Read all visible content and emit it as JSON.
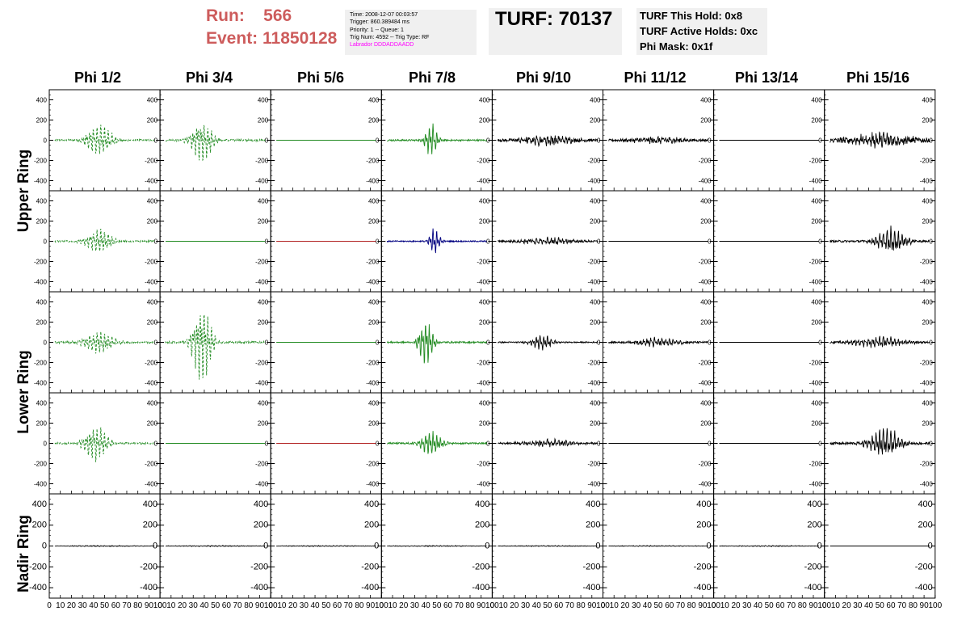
{
  "header": {
    "run_label": "Run:",
    "run_value": "566",
    "event_label": "Event:",
    "event_value": "11850128",
    "time": "Time: 2008-12-07 00:03:57",
    "trigger": "Trigger: 860.389484 ms",
    "priority": "Priority: 1 -- Queue: 1",
    "trig": "Trig Num: 4592 -- Trig Type: RF",
    "labrador": "Labrador DDDADDAADD",
    "turf": "TURF: 70137",
    "turf_hold": "TURF This Hold: 0x8",
    "turf_active": "TURF Active Holds: 0xc",
    "phi_mask": "Phi Mask: 0x1f"
  },
  "columns": [
    "Phi 1/2",
    "Phi 3/4",
    "Phi 5/6",
    "Phi 7/8",
    "Phi 9/10",
    "Phi 11/12",
    "Phi 13/14",
    "Phi 15/16"
  ],
  "rows": [
    "Upper Ring",
    "Lower Ring",
    "Nadir Ring"
  ],
  "colors": {
    "green": "#228b22",
    "blue": "#000080",
    "red": "#b22222",
    "black": "#000000",
    "run": "#cd5c5c",
    "labrador": "#ff00ff"
  },
  "chart_data": {
    "type": "line",
    "xlim": [
      0,
      100
    ],
    "ylim": [
      -500,
      500
    ],
    "x_ticks": [
      0,
      10,
      20,
      30,
      40,
      50,
      60,
      70,
      80,
      90,
      100
    ],
    "y_ticks": [
      -400,
      -200,
      0,
      200,
      400
    ],
    "grid": false,
    "panel_rows": 5,
    "panel_cols": 8,
    "panels": [
      [
        {
          "color": "green",
          "dashed": true,
          "amp": 170,
          "center": 45,
          "width": 12,
          "noise": 22
        },
        {
          "color": "green",
          "dashed": true,
          "amp": 210,
          "center": 38,
          "width": 10,
          "noise": 25
        },
        {
          "color": "green",
          "dashed": false,
          "amp": 0,
          "center": 50,
          "width": 10,
          "noise": 0
        },
        {
          "color": "green",
          "dashed": false,
          "amp": 180,
          "center": 45,
          "width": 6,
          "noise": 20
        },
        {
          "color": "black",
          "dashed": false,
          "amp": 40,
          "center": 50,
          "width": 25,
          "noise": 30
        },
        {
          "color": "black",
          "dashed": false,
          "amp": 25,
          "center": 50,
          "width": 25,
          "noise": 25
        },
        {
          "color": "black",
          "dashed": false,
          "amp": 0,
          "center": 50,
          "width": 10,
          "noise": 0
        },
        {
          "color": "black",
          "dashed": false,
          "amp": 60,
          "center": 50,
          "width": 30,
          "noise": 45
        }
      ],
      [
        {
          "color": "green",
          "dashed": true,
          "amp": 130,
          "center": 45,
          "width": 12,
          "noise": 20
        },
        {
          "color": "green",
          "dashed": false,
          "amp": 0,
          "center": 50,
          "width": 10,
          "noise": 0
        },
        {
          "color": "red",
          "dashed": false,
          "amp": 0,
          "center": 50,
          "width": 10,
          "noise": 0
        },
        {
          "color": "blue",
          "dashed": false,
          "amp": 140,
          "center": 48,
          "width": 5,
          "noise": 15
        },
        {
          "color": "black",
          "dashed": false,
          "amp": 30,
          "center": 50,
          "width": 25,
          "noise": 20
        },
        {
          "color": "black",
          "dashed": false,
          "amp": 0,
          "center": 50,
          "width": 10,
          "noise": 0
        },
        {
          "color": "black",
          "dashed": false,
          "amp": 0,
          "center": 50,
          "width": 10,
          "noise": 0
        },
        {
          "color": "black",
          "dashed": false,
          "amp": 130,
          "center": 60,
          "width": 14,
          "noise": 25
        }
      ],
      [
        {
          "color": "green",
          "dashed": true,
          "amp": 120,
          "center": 45,
          "width": 14,
          "noise": 22
        },
        {
          "color": "green",
          "dashed": true,
          "amp": 420,
          "center": 38,
          "width": 9,
          "noise": 25
        },
        {
          "color": "green",
          "dashed": false,
          "amp": 0,
          "center": 50,
          "width": 10,
          "noise": 0
        },
        {
          "color": "green",
          "dashed": false,
          "amp": 240,
          "center": 40,
          "width": 7,
          "noise": 20
        },
        {
          "color": "black",
          "dashed": false,
          "amp": 80,
          "center": 45,
          "width": 10,
          "noise": 15
        },
        {
          "color": "black",
          "dashed": false,
          "amp": 40,
          "center": 50,
          "width": 20,
          "noise": 20
        },
        {
          "color": "black",
          "dashed": false,
          "amp": 0,
          "center": 50,
          "width": 10,
          "noise": 0
        },
        {
          "color": "black",
          "dashed": false,
          "amp": 50,
          "center": 50,
          "width": 25,
          "noise": 20
        }
      ],
      [
        {
          "color": "green",
          "dashed": true,
          "amp": 190,
          "center": 42,
          "width": 11,
          "noise": 20
        },
        {
          "color": "green",
          "dashed": false,
          "amp": 0,
          "center": 50,
          "width": 10,
          "noise": 0
        },
        {
          "color": "red",
          "dashed": false,
          "amp": 0,
          "center": 50,
          "width": 10,
          "noise": 0
        },
        {
          "color": "green",
          "dashed": false,
          "amp": 120,
          "center": 45,
          "width": 10,
          "noise": 20
        },
        {
          "color": "black",
          "dashed": false,
          "amp": 30,
          "center": 50,
          "width": 25,
          "noise": 20
        },
        {
          "color": "black",
          "dashed": false,
          "amp": 0,
          "center": 50,
          "width": 10,
          "noise": 0
        },
        {
          "color": "black",
          "dashed": false,
          "amp": 0,
          "center": 50,
          "width": 10,
          "noise": 0
        },
        {
          "color": "black",
          "dashed": false,
          "amp": 150,
          "center": 55,
          "width": 15,
          "noise": 30
        }
      ],
      [
        {
          "color": "black",
          "dashed": false,
          "amp": 4,
          "center": 50,
          "width": 40,
          "noise": 3
        },
        {
          "color": "black",
          "dashed": false,
          "amp": 4,
          "center": 50,
          "width": 40,
          "noise": 3
        },
        {
          "color": "black",
          "dashed": false,
          "amp": 4,
          "center": 50,
          "width": 40,
          "noise": 3
        },
        {
          "color": "black",
          "dashed": false,
          "amp": 4,
          "center": 50,
          "width": 40,
          "noise": 3
        },
        {
          "color": "black",
          "dashed": false,
          "amp": 4,
          "center": 50,
          "width": 40,
          "noise": 3
        },
        {
          "color": "black",
          "dashed": false,
          "amp": 4,
          "center": 50,
          "width": 40,
          "noise": 3
        },
        {
          "color": "black",
          "dashed": false,
          "amp": 4,
          "center": 50,
          "width": 40,
          "noise": 3
        },
        {
          "color": "black",
          "dashed": false,
          "amp": 0,
          "center": 50,
          "width": 10,
          "noise": 0
        }
      ]
    ]
  }
}
